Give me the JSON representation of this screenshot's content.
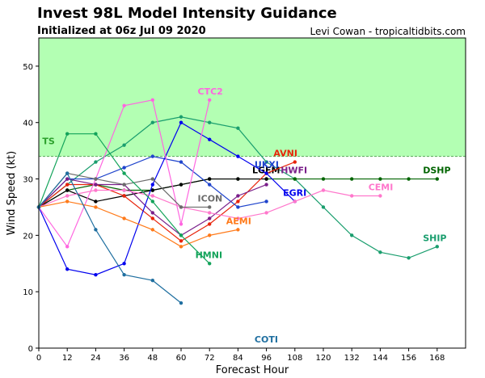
{
  "header": {
    "title": "Invest 98L Model Intensity Guidance",
    "subtitle": "Initialized at 06z Jul 09 2020",
    "credit": "Levi Cowan - tropicaltidbits.com"
  },
  "chart_data": {
    "type": "line",
    "title": "Invest 98L Model Intensity Guidance",
    "subtitle": "Initialized at 06z Jul 09 2020",
    "xlabel": "Forecast Hour",
    "ylabel": "Wind Speed (kt)",
    "xlim": [
      0,
      180
    ],
    "ylim": [
      0,
      55
    ],
    "xticks": [
      0,
      12,
      24,
      36,
      48,
      60,
      72,
      84,
      96,
      108,
      120,
      132,
      144,
      156,
      168
    ],
    "yticks": [
      0,
      10,
      20,
      30,
      40,
      50
    ],
    "ts_threshold": 34,
    "ts_label": "TS",
    "ts_band_color": "#b3ffb3",
    "grid": false,
    "series": [
      {
        "name": "SHIP",
        "color": "#1a9e6e",
        "x": [
          0,
          12,
          24,
          36,
          48,
          60,
          72,
          84,
          96,
          108,
          120,
          132,
          144,
          156,
          168
        ],
        "y": [
          25,
          29,
          33,
          36,
          40,
          41,
          40,
          39,
          33,
          30,
          25,
          20,
          17,
          16,
          18
        ],
        "label_x": 162,
        "label_y": 19
      },
      {
        "name": "DSHP",
        "color": "#006400",
        "x": [
          0,
          12,
          24,
          36,
          48,
          60,
          72,
          84,
          96,
          108,
          120,
          132,
          144,
          156,
          168
        ],
        "y": [
          25,
          28,
          29,
          28,
          28,
          29,
          30,
          30,
          30,
          30,
          30,
          30,
          30,
          30,
          30
        ],
        "label_x": 162,
        "label_y": 31
      },
      {
        "name": "LGEM",
        "color": "#000000",
        "x": [
          0,
          12,
          24,
          36,
          48,
          60,
          72,
          84,
          96
        ],
        "y": [
          25,
          28,
          26,
          27,
          28,
          29,
          30,
          30,
          30
        ],
        "label_x": 90,
        "label_y": 31
      },
      {
        "name": "AVNI",
        "color": "#e8230a",
        "x": [
          0,
          12,
          24,
          36,
          48,
          60,
          72,
          84,
          96,
          108
        ],
        "y": [
          25,
          29,
          29,
          27,
          23,
          19,
          22,
          26,
          31,
          33
        ],
        "label_x": 99,
        "label_y": 34
      },
      {
        "name": "UKXI",
        "color": "#1f44cc",
        "x": [
          0,
          12,
          24,
          36,
          48,
          60,
          72,
          84,
          96
        ],
        "y": [
          25,
          30,
          30,
          32,
          34,
          33,
          29,
          25,
          26
        ],
        "label_x": 91,
        "label_y": 32
      },
      {
        "name": "HWFI",
        "color": "#7a1f8a",
        "x": [
          0,
          12,
          24,
          36,
          48,
          60,
          72,
          84,
          96
        ],
        "y": [
          25,
          30,
          29,
          29,
          24,
          20,
          23,
          27,
          29
        ],
        "label_x": 102,
        "label_y": 31
      },
      {
        "name": "EGRI",
        "color": "#0000ee",
        "x": [
          0,
          12,
          24,
          36,
          48,
          60,
          72,
          84,
          96,
          108
        ],
        "y": [
          25,
          14,
          13,
          15,
          29,
          40,
          37,
          34,
          31,
          26
        ],
        "label_x": 103,
        "label_y": 27
      },
      {
        "name": "CTC2",
        "color": "#ff66e0",
        "x": [
          0,
          12,
          24,
          36,
          48,
          60,
          72
        ],
        "y": [
          25,
          18,
          30,
          43,
          44,
          22,
          44
        ],
        "label_x": 67,
        "label_y": 45
      },
      {
        "name": "CEMI",
        "color": "#ff77cc",
        "x": [
          0,
          12,
          24,
          36,
          48,
          60,
          72,
          84,
          96,
          108,
          120,
          132,
          144
        ],
        "y": [
          25,
          27,
          28,
          28,
          27,
          25,
          24,
          23,
          24,
          26,
          28,
          27,
          27
        ],
        "label_x": 139,
        "label_y": 28
      },
      {
        "name": "ICON",
        "color": "#6b6b6b",
        "x": [
          0,
          12,
          24,
          36,
          48,
          60,
          72
        ],
        "y": [
          25,
          31,
          30,
          29,
          30,
          25,
          25
        ],
        "label_x": 67,
        "label_y": 26
      },
      {
        "name": "AEMI",
        "color": "#ff7a1a",
        "x": [
          0,
          12,
          24,
          36,
          48,
          60,
          72,
          84
        ],
        "y": [
          25,
          26,
          25,
          23,
          21,
          18,
          20,
          21
        ],
        "label_x": 79,
        "label_y": 22
      },
      {
        "name": "HMNI",
        "color": "#13a35a",
        "x": [
          0,
          12,
          24,
          36,
          48,
          60,
          72
        ],
        "y": [
          25,
          38,
          38,
          31,
          26,
          20,
          15
        ],
        "label_x": 66,
        "label_y": 16
      },
      {
        "name": "COTI",
        "color": "#1f6fa0",
        "x": [
          0,
          12,
          24,
          36,
          48,
          60
        ],
        "y": [
          25,
          31,
          21,
          13,
          12,
          8
        ],
        "label_x": 91,
        "label_y": 1
      }
    ]
  }
}
